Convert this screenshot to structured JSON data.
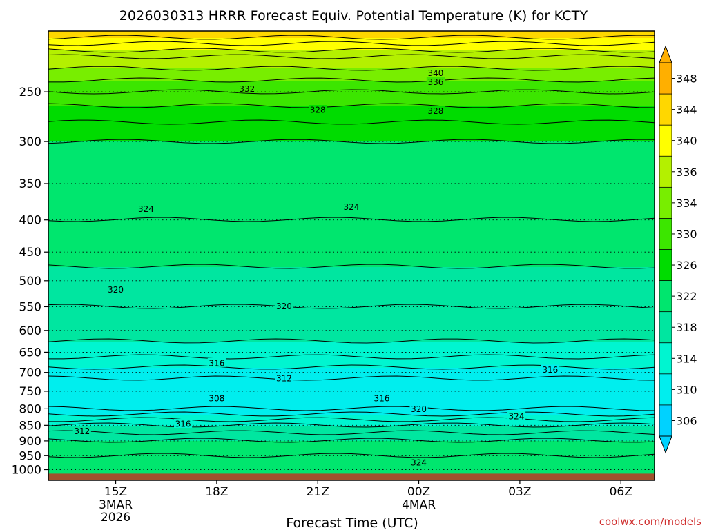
{
  "chart_data": {
    "type": "heatmap",
    "title": "2026030313 HRRR Forecast Equiv. Potential Temperature (K) for KCTY",
    "xlabel": "Forecast Time (UTC)",
    "ylabel": "",
    "x_ticks": [
      {
        "label": "15Z",
        "sub1": "3MAR",
        "sub2": "2026",
        "hour": 2
      },
      {
        "label": "18Z",
        "sub1": "",
        "sub2": "",
        "hour": 5
      },
      {
        "label": "21Z",
        "sub1": "",
        "sub2": "",
        "hour": 8
      },
      {
        "label": "00Z",
        "sub1": "4MAR",
        "sub2": "",
        "hour": 11
      },
      {
        "label": "03Z",
        "sub1": "",
        "sub2": "",
        "hour": 14
      },
      {
        "label": "06Z",
        "sub1": "",
        "sub2": "",
        "hour": 17
      }
    ],
    "xlim_hours": [
      0,
      18
    ],
    "y_ticks": [
      "250",
      "300",
      "350",
      "400",
      "450",
      "500",
      "550",
      "600",
      "650",
      "700",
      "750",
      "800",
      "850",
      "900",
      "950",
      "1000"
    ],
    "y_ticks_hpa": [
      250,
      300,
      350,
      400,
      450,
      500,
      550,
      600,
      650,
      700,
      750,
      800,
      850,
      900,
      950,
      1000
    ],
    "ylim_hpa": [
      200,
      1040
    ],
    "y_scale": "log",
    "y_inverted": true,
    "grid": "dotted horizontal lines at pressure levels",
    "colorbar": {
      "levels": [
        306,
        310,
        314,
        318,
        322,
        326,
        330,
        334,
        336,
        340,
        344,
        348
      ],
      "labels": [
        "348",
        "344",
        "340",
        "336",
        "334",
        "330",
        "326",
        "322",
        "318",
        "314",
        "310",
        "306"
      ],
      "colors": [
        "#00d2ff",
        "#00eeee",
        "#00f5d0",
        "#00e6a0",
        "#00e66e",
        "#00dc00",
        "#3ce600",
        "#78ee00",
        "#b4f000",
        "#ffff00",
        "#ffd700",
        "#ffaf00"
      ],
      "extend": "both"
    },
    "profile_levels": [
      {
        "p": 200,
        "theta_e": 346
      },
      {
        "p": 220,
        "theta_e": 338
      },
      {
        "p": 250,
        "theta_e": 332
      },
      {
        "p": 270,
        "theta_e": 329
      },
      {
        "p": 300,
        "theta_e": 326
      },
      {
        "p": 350,
        "theta_e": 325
      },
      {
        "p": 400,
        "theta_e": 324
      },
      {
        "p": 450,
        "theta_e": 323
      },
      {
        "p": 500,
        "theta_e": 321
      },
      {
        "p": 550,
        "theta_e": 320
      },
      {
        "p": 600,
        "theta_e": 319
      },
      {
        "p": 650,
        "theta_e": 317
      },
      {
        "p": 700,
        "theta_e": 313
      },
      {
        "p": 750,
        "theta_e": 310
      },
      {
        "p": 800,
        "theta_e": 312
      },
      {
        "p": 850,
        "theta_e": 318
      },
      {
        "p": 900,
        "theta_e": 322
      },
      {
        "p": 950,
        "theta_e": 324
      },
      {
        "p": 1000,
        "theta_e": 325
      },
      {
        "p": 1040,
        "theta_e": 325
      }
    ],
    "contour_labels": [
      {
        "text": "340",
        "hour": 11.5,
        "p": 233
      },
      {
        "text": "336",
        "hour": 11.5,
        "p": 241
      },
      {
        "text": "332",
        "hour": 5.9,
        "p": 247
      },
      {
        "text": "328",
        "hour": 8.0,
        "p": 267
      },
      {
        "text": "328",
        "hour": 11.5,
        "p": 268
      },
      {
        "text": "324",
        "hour": 2.9,
        "p": 384
      },
      {
        "text": "324",
        "hour": 9.0,
        "p": 381
      },
      {
        "text": "320",
        "hour": 2.0,
        "p": 516
      },
      {
        "text": "320",
        "hour": 7.0,
        "p": 549
      },
      {
        "text": "316",
        "hour": 5.0,
        "p": 676
      },
      {
        "text": "316",
        "hour": 14.9,
        "p": 693
      },
      {
        "text": "312",
        "hour": 7.0,
        "p": 715
      },
      {
        "text": "308",
        "hour": 5.0,
        "p": 769
      },
      {
        "text": "316",
        "hour": 9.9,
        "p": 769
      },
      {
        "text": "320",
        "hour": 11.0,
        "p": 800
      },
      {
        "text": "324",
        "hour": 13.9,
        "p": 822
      },
      {
        "text": "316",
        "hour": 4.0,
        "p": 845
      },
      {
        "text": "312",
        "hour": 1.0,
        "p": 868
      },
      {
        "text": "324",
        "hour": 11.0,
        "p": 974
      }
    ],
    "ground_level_hpa": 1015
  },
  "credit": "coolwx.com/models",
  "colors": {
    "ground": "#a0522d",
    "contour": "#000000"
  }
}
